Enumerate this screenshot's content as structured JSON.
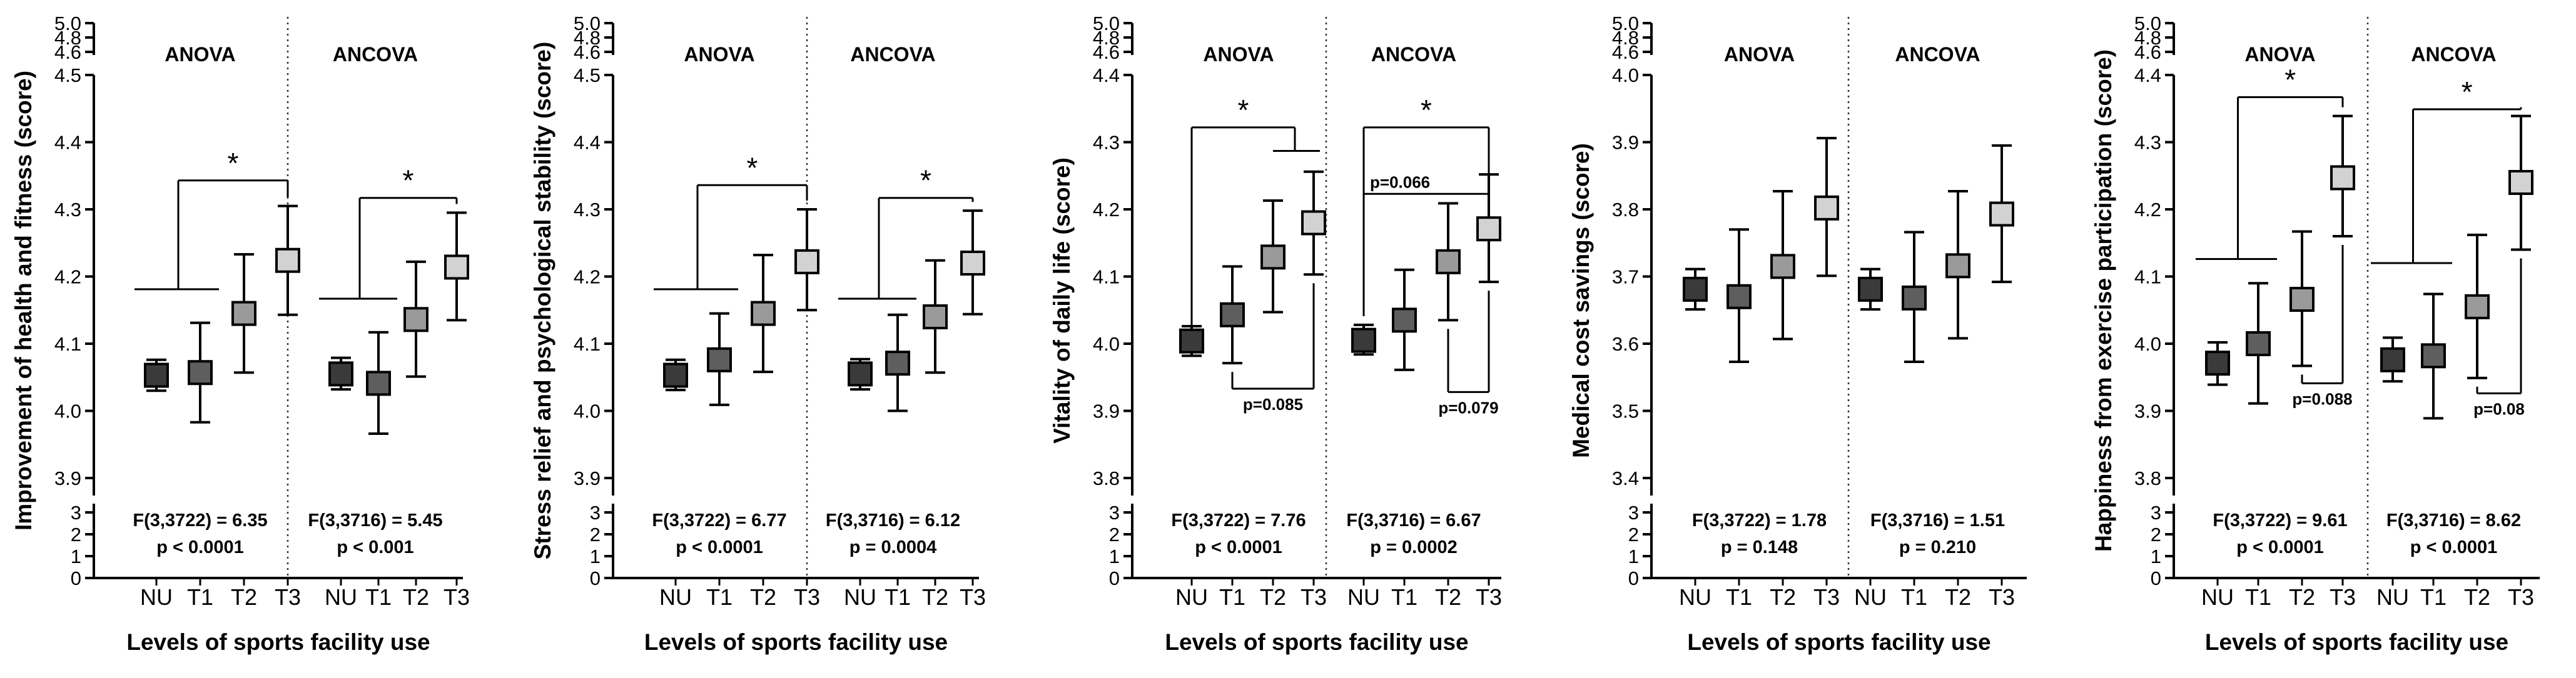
{
  "figure": {
    "shared_xlabel": "Levels of sports facility use",
    "categories": [
      "NU",
      "T1",
      "T2",
      "T3"
    ],
    "group_titles": [
      "ANOVA",
      "ANCOVA"
    ],
    "marker_colors": {
      "NU": "#3a3a3a",
      "T1": "#5e5e5e",
      "T2": "#9a9a9a",
      "T3": "#d2d2d2"
    },
    "lower_axis": {
      "ticks": [
        0,
        1,
        2,
        3
      ]
    }
  },
  "chart_data": [
    {
      "type": "scatter",
      "title": "",
      "xlabel": "Levels of sports facility use",
      "ylabel": "Improvement of health and fitness (score)",
      "ylim": [
        3.9,
        4.5
      ],
      "yticks": [
        3.9,
        4.0,
        4.1,
        4.2,
        4.3,
        4.4,
        4.5
      ],
      "ytop_ticks": [
        4.6,
        4.8,
        5.0
      ],
      "ylower_ticks": [
        0,
        1,
        2,
        3
      ],
      "series": [
        {
          "name": "ANOVA",
          "categories": [
            "NU",
            "T1",
            "T2",
            "T3"
          ],
          "mean": [
            4.053,
            4.057,
            4.145,
            4.224
          ],
          "lower": [
            4.03,
            3.983,
            4.057,
            4.143
          ],
          "upper": [
            4.076,
            4.131,
            4.233,
            4.305
          ],
          "stat_line1": "F(3,3722) = 6.35",
          "stat_line2": "p < 0.0001"
        },
        {
          "name": "ANCOVA",
          "categories": [
            "NU",
            "T1",
            "T2",
            "T3"
          ],
          "mean": [
            4.055,
            4.041,
            4.136,
            4.214
          ],
          "lower": [
            4.032,
            3.966,
            4.051,
            4.135
          ],
          "upper": [
            4.079,
            4.117,
            4.222,
            4.295
          ],
          "stat_line1": "F(3,3716) = 5.45",
          "stat_line2": "p < 0.001"
        }
      ],
      "annotations": [
        {
          "group": 0,
          "kind": "group_top",
          "from": 0,
          "to": 3,
          "bar_y": 4.343,
          "junction_y": 4.181,
          "label": "*"
        },
        {
          "group": 1,
          "kind": "group_top",
          "from": 0,
          "to": 3,
          "bar_y": 4.317,
          "junction_y": 4.167,
          "label": "*"
        }
      ]
    },
    {
      "type": "scatter",
      "title": "",
      "xlabel": "Levels of sports facility use",
      "ylabel": "Stress relief and psychological stability (score)",
      "ylim": [
        3.9,
        4.5
      ],
      "yticks": [
        3.9,
        4.0,
        4.1,
        4.2,
        4.3,
        4.4,
        4.5
      ],
      "ytop_ticks": [
        4.6,
        4.8,
        5.0
      ],
      "ylower_ticks": [
        0,
        1,
        2,
        3
      ],
      "series": [
        {
          "name": "ANOVA",
          "categories": [
            "NU",
            "T1",
            "T2",
            "T3"
          ],
          "mean": [
            4.053,
            4.076,
            4.145,
            4.222
          ],
          "lower": [
            4.031,
            4.009,
            4.058,
            4.15
          ],
          "upper": [
            4.076,
            4.145,
            4.232,
            4.3
          ],
          "stat_line1": "F(3,3722) = 6.77",
          "stat_line2": "p < 0.0001"
        },
        {
          "name": "ANCOVA",
          "categories": [
            "NU",
            "T1",
            "T2",
            "T3"
          ],
          "mean": [
            4.055,
            4.071,
            4.14,
            4.22
          ],
          "lower": [
            4.032,
            4.0,
            4.057,
            4.144
          ],
          "upper": [
            4.077,
            4.143,
            4.224,
            4.298
          ],
          "stat_line1": "F(3,3716) = 6.12",
          "stat_line2": "p = 0.0004"
        }
      ],
      "annotations": [
        {
          "group": 0,
          "kind": "group_top",
          "from": 0,
          "to": 3,
          "bar_y": 4.336,
          "junction_y": 4.181,
          "label": "*"
        },
        {
          "group": 1,
          "kind": "group_top",
          "from": 0,
          "to": 3,
          "bar_y": 4.317,
          "junction_y": 4.167,
          "label": "*"
        }
      ]
    },
    {
      "type": "scatter",
      "title": "",
      "xlabel": "Levels of sports facility use",
      "ylabel": "Vitality of daily life (score)",
      "ylim": [
        3.8,
        4.4
      ],
      "yticks": [
        3.8,
        3.9,
        4.0,
        4.1,
        4.2,
        4.3,
        4.4
      ],
      "ytop_ticks": [
        4.6,
        4.8,
        5.0
      ],
      "ylower_ticks": [
        0,
        1,
        2,
        3
      ],
      "series": [
        {
          "name": "ANOVA",
          "categories": [
            "NU",
            "T1",
            "T2",
            "T3"
          ],
          "mean": [
            4.004,
            4.043,
            4.129,
            4.18
          ],
          "lower": [
            3.982,
            3.971,
            4.047,
            4.103
          ],
          "upper": [
            4.026,
            4.115,
            4.213,
            4.256
          ],
          "stat_line1": "F(3,3722) = 7.76",
          "stat_line2": "p < 0.0001"
        },
        {
          "name": "ANCOVA",
          "categories": [
            "NU",
            "T1",
            "T2",
            "T3"
          ],
          "mean": [
            4.005,
            4.035,
            4.122,
            4.171
          ],
          "lower": [
            3.984,
            3.961,
            4.035,
            4.092
          ],
          "upper": [
            4.028,
            4.11,
            4.209,
            4.252
          ],
          "stat_line1": "F(3,3716) = 6.67",
          "stat_line2": "p = 0.0002"
        }
      ],
      "annotations": [
        {
          "group": 0,
          "kind": "group_top",
          "from": 0,
          "to": 3,
          "bar_y": 4.322,
          "junction_y": 4.287,
          "label": "*"
        },
        {
          "group": 1,
          "kind": "group_top",
          "from": 0,
          "to": 3,
          "bar_y": 4.322,
          "label": "*"
        },
        {
          "group": 1,
          "kind": "group_top",
          "from": 0,
          "to": 3,
          "bar_y": 4.223,
          "label": "p=0.066"
        },
        {
          "group": 0,
          "kind": "bottom",
          "from": 1,
          "to": 3,
          "bar_y": 3.933,
          "label": "p=0.085"
        },
        {
          "group": 1,
          "kind": "bottom",
          "from": 2,
          "to": 3,
          "bar_y": 3.928,
          "label": "p=0.079"
        }
      ]
    },
    {
      "type": "scatter",
      "title": "",
      "xlabel": "Levels of sports facility use",
      "ylabel": "Medical cost savings (score)",
      "ylim": [
        3.4,
        4.0
      ],
      "yticks": [
        3.4,
        3.5,
        3.6,
        3.7,
        3.8,
        3.9,
        4.0
      ],
      "ytop_ticks": [
        4.6,
        4.8,
        5.0
      ],
      "ylower_ticks": [
        0,
        1,
        2,
        3
      ],
      "series": [
        {
          "name": "ANOVA",
          "categories": [
            "NU",
            "T1",
            "T2",
            "T3"
          ],
          "mean": [
            3.681,
            3.67,
            3.715,
            3.802
          ],
          "lower": [
            3.651,
            3.573,
            3.607,
            3.701
          ],
          "upper": [
            3.711,
            3.77,
            3.827,
            3.906
          ],
          "stat_line1": "F(3,3722) = 1.78",
          "stat_line2": "p = 0.148"
        },
        {
          "name": "ANCOVA",
          "categories": [
            "NU",
            "T1",
            "T2",
            "T3"
          ],
          "mean": [
            3.681,
            3.668,
            3.716,
            3.793
          ],
          "lower": [
            3.651,
            3.573,
            3.608,
            3.692
          ],
          "upper": [
            3.711,
            3.766,
            3.827,
            3.895
          ],
          "stat_line1": "F(3,3716) = 1.51",
          "stat_line2": "p = 0.210"
        }
      ],
      "annotations": []
    },
    {
      "type": "scatter",
      "title": "",
      "xlabel": "Levels of sports facility use",
      "ylabel": "Happiness from exercise participation (score)",
      "ylim": [
        3.8,
        4.4
      ],
      "yticks": [
        3.8,
        3.9,
        4.0,
        4.1,
        4.2,
        4.3,
        4.4
      ],
      "ytop_ticks": [
        4.6,
        4.8,
        5.0
      ],
      "ylower_ticks": [
        0,
        1,
        2,
        3
      ],
      "series": [
        {
          "name": "ANOVA",
          "categories": [
            "NU",
            "T1",
            "T2",
            "T3"
          ],
          "mean": [
            3.971,
            4.0,
            4.066,
            4.247
          ],
          "lower": [
            3.939,
            3.911,
            3.967,
            4.16
          ],
          "upper": [
            4.002,
            4.09,
            4.167,
            4.339
          ],
          "stat_line1": "F(3,3722) = 9.61",
          "stat_line2": "p < 0.0001"
        },
        {
          "name": "ANCOVA",
          "categories": [
            "NU",
            "T1",
            "T2",
            "T3"
          ],
          "mean": [
            3.976,
            3.982,
            4.055,
            4.24
          ],
          "lower": [
            3.944,
            3.889,
            3.949,
            4.14
          ],
          "upper": [
            4.009,
            4.074,
            4.162,
            4.339
          ],
          "stat_line1": "F(3,3716) = 8.62",
          "stat_line2": "p < 0.0001"
        }
      ],
      "annotations": [
        {
          "group": 0,
          "kind": "group_top",
          "from": 0,
          "to": 3,
          "bar_y": 4.367,
          "junction_y": 4.126,
          "label": "*"
        },
        {
          "group": 1,
          "kind": "group_top",
          "from": 0,
          "to": 3,
          "bar_y": 4.349,
          "junction_y": 4.12,
          "label": "*"
        },
        {
          "group": 0,
          "kind": "bottom",
          "from": 2,
          "to": 3,
          "bar_y": 3.941,
          "label": "p=0.088"
        },
        {
          "group": 1,
          "kind": "bottom",
          "from": 2,
          "to": 3,
          "bar_y": 3.926,
          "label": "p=0.08"
        }
      ]
    }
  ]
}
